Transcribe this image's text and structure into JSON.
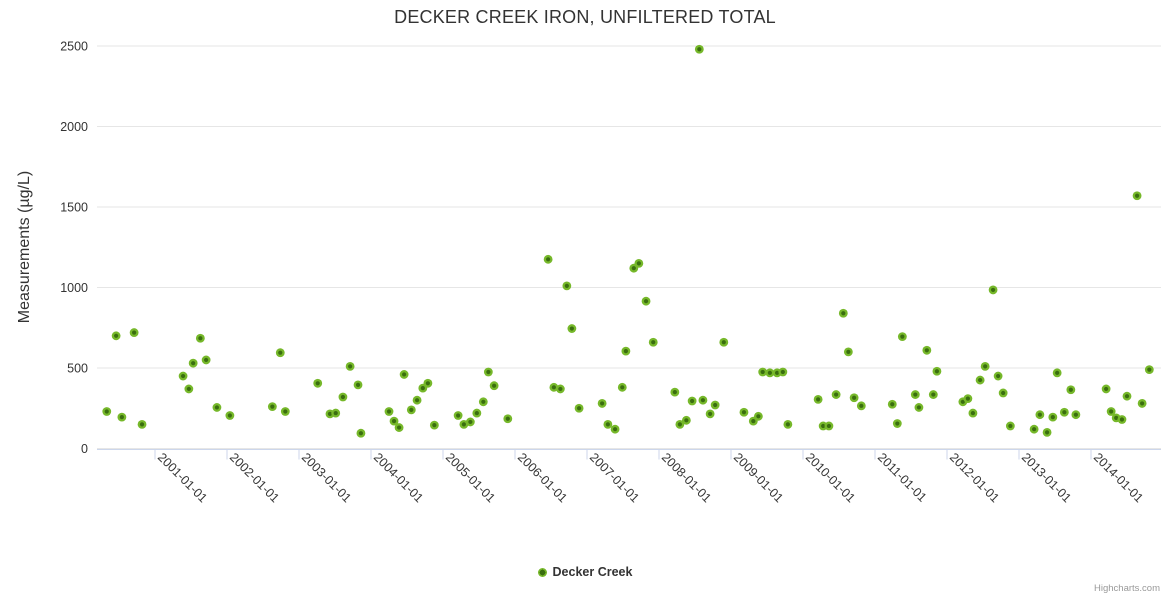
{
  "header": {
    "title": "DECKER CREEK IRON, UNFILTERED TOTAL"
  },
  "legend": {
    "label": "Decker Creek"
  },
  "credits": {
    "label": "Highcharts.com"
  },
  "colors": {
    "marker_outer": "#76b82a",
    "marker_inner": "#3a6e0f",
    "grid": "#e6e6e6",
    "axis_line": "#ccd6eb",
    "text": "#333333",
    "credits_text": "#999999"
  },
  "chart_data": {
    "type": "scatter",
    "title": "DECKER CREEK IRON, UNFILTERED TOTAL",
    "xlabel": "",
    "ylabel": "Measurements (µg/L)",
    "ylim": [
      0,
      2500
    ],
    "y_ticks": [
      0,
      500,
      1000,
      1500,
      2000,
      2500
    ],
    "x_tick_labels": [
      "2001-01-01",
      "2002-01-01",
      "2003-01-01",
      "2004-01-01",
      "2005-01-01",
      "2006-01-01",
      "2007-01-01",
      "2008-01-01",
      "2009-01-01",
      "2010-01-01",
      "2011-01-01",
      "2012-01-01",
      "2013-01-01",
      "2014-01-01"
    ],
    "xlim_years": [
      2000.19,
      2014.97
    ],
    "grid": "horizontal-only",
    "legend_position": "bottom-center",
    "series": [
      {
        "name": "Decker Creek",
        "color": "#76b82a",
        "points": [
          [
            2000.33,
            230
          ],
          [
            2000.46,
            700
          ],
          [
            2000.54,
            195
          ],
          [
            2000.71,
            720
          ],
          [
            2000.82,
            150
          ],
          [
            2001.39,
            450
          ],
          [
            2001.47,
            370
          ],
          [
            2001.53,
            530
          ],
          [
            2001.63,
            685
          ],
          [
            2001.71,
            550
          ],
          [
            2001.86,
            255
          ],
          [
            2002.04,
            205
          ],
          [
            2002.63,
            260
          ],
          [
            2002.74,
            595
          ],
          [
            2002.81,
            230
          ],
          [
            2003.26,
            405
          ],
          [
            2003.43,
            215
          ],
          [
            2003.51,
            220
          ],
          [
            2003.61,
            320
          ],
          [
            2003.71,
            510
          ],
          [
            2003.82,
            395
          ],
          [
            2003.86,
            95
          ],
          [
            2004.25,
            230
          ],
          [
            2004.32,
            170
          ],
          [
            2004.39,
            130
          ],
          [
            2004.46,
            460
          ],
          [
            2004.56,
            240
          ],
          [
            2004.64,
            300
          ],
          [
            2004.72,
            375
          ],
          [
            2004.79,
            405
          ],
          [
            2004.88,
            145
          ],
          [
            2005.21,
            205
          ],
          [
            2005.29,
            150
          ],
          [
            2005.38,
            165
          ],
          [
            2005.47,
            220
          ],
          [
            2005.56,
            290
          ],
          [
            2005.63,
            475
          ],
          [
            2005.71,
            390
          ],
          [
            2005.9,
            185
          ],
          [
            2006.46,
            1175
          ],
          [
            2006.54,
            380
          ],
          [
            2006.63,
            370
          ],
          [
            2006.72,
            1010
          ],
          [
            2006.79,
            745
          ],
          [
            2006.89,
            250
          ],
          [
            2007.21,
            280
          ],
          [
            2007.29,
            150
          ],
          [
            2007.39,
            120
          ],
          [
            2007.49,
            380
          ],
          [
            2007.54,
            605
          ],
          [
            2007.65,
            1120
          ],
          [
            2007.72,
            1150
          ],
          [
            2007.82,
            915
          ],
          [
            2007.92,
            660
          ],
          [
            2008.22,
            350
          ],
          [
            2008.29,
            150
          ],
          [
            2008.38,
            175
          ],
          [
            2008.46,
            295
          ],
          [
            2008.56,
            2480
          ],
          [
            2008.61,
            300
          ],
          [
            2008.71,
            215
          ],
          [
            2008.78,
            270
          ],
          [
            2008.9,
            660
          ],
          [
            2009.18,
            225
          ],
          [
            2009.31,
            170
          ],
          [
            2009.38,
            200
          ],
          [
            2009.44,
            475
          ],
          [
            2009.54,
            470
          ],
          [
            2009.64,
            470
          ],
          [
            2009.72,
            475
          ],
          [
            2009.79,
            150
          ],
          [
            2010.21,
            305
          ],
          [
            2010.28,
            140
          ],
          [
            2010.36,
            140
          ],
          [
            2010.46,
            335
          ],
          [
            2010.56,
            840
          ],
          [
            2010.63,
            600
          ],
          [
            2010.71,
            315
          ],
          [
            2010.81,
            265
          ],
          [
            2011.24,
            275
          ],
          [
            2011.31,
            155
          ],
          [
            2011.38,
            695
          ],
          [
            2011.56,
            335
          ],
          [
            2011.61,
            255
          ],
          [
            2011.72,
            610
          ],
          [
            2011.81,
            335
          ],
          [
            2011.86,
            480
          ],
          [
            2012.22,
            290
          ],
          [
            2012.29,
            310
          ],
          [
            2012.36,
            220
          ],
          [
            2012.46,
            425
          ],
          [
            2012.53,
            510
          ],
          [
            2012.64,
            985
          ],
          [
            2012.71,
            450
          ],
          [
            2012.78,
            345
          ],
          [
            2012.88,
            140
          ],
          [
            2013.21,
            120
          ],
          [
            2013.29,
            210
          ],
          [
            2013.39,
            100
          ],
          [
            2013.47,
            195
          ],
          [
            2013.53,
            470
          ],
          [
            2013.63,
            225
          ],
          [
            2013.72,
            365
          ],
          [
            2013.79,
            210
          ],
          [
            2014.21,
            370
          ],
          [
            2014.28,
            230
          ],
          [
            2014.35,
            190
          ],
          [
            2014.43,
            180
          ],
          [
            2014.5,
            325
          ],
          [
            2014.64,
            1570
          ],
          [
            2014.71,
            280
          ],
          [
            2014.81,
            490
          ]
        ]
      }
    ]
  }
}
